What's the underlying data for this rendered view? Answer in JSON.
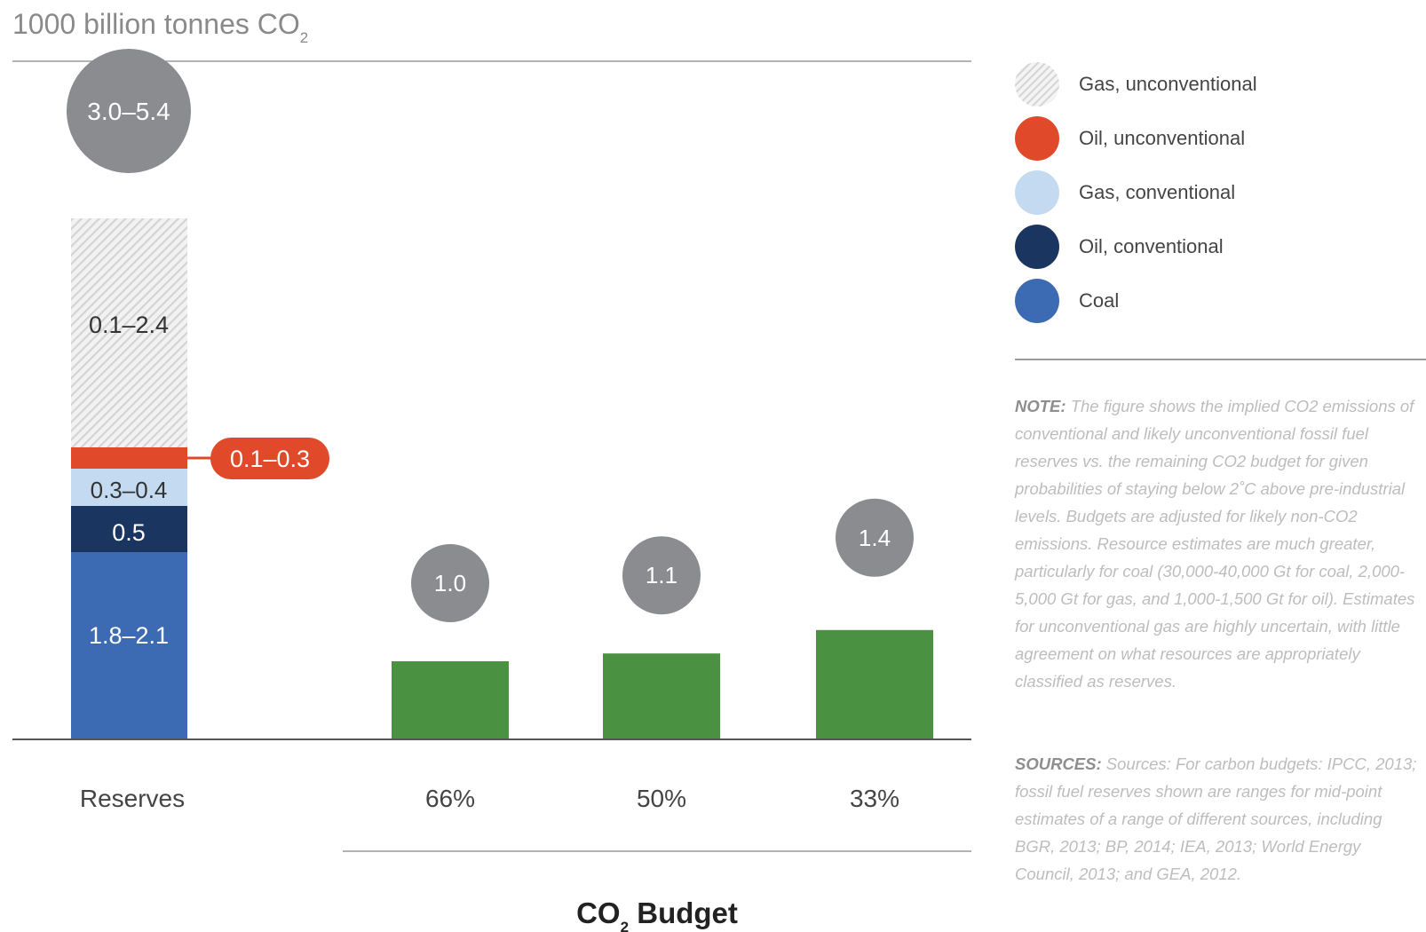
{
  "chart_data": {
    "type": "bar",
    "y_title": "1000 billion tonnes CO",
    "y_title_sub": "2",
    "reserves": {
      "label": "Reserves",
      "total_label": "3.0–5.4",
      "segments": [
        {
          "name": "Coal",
          "range": "1.8–2.1",
          "color": "#3d6bb3"
        },
        {
          "name": "Oil, conventional",
          "range": "0.5",
          "color": "#1b3561"
        },
        {
          "name": "Gas, conventional",
          "range": "0.3–0.4",
          "color": "#c3daf1"
        },
        {
          "name": "Oil, unconventional",
          "range": "0.1–0.3",
          "color": "#e04a2a"
        },
        {
          "name": "Gas, unconventional",
          "range": "0.1–2.4",
          "color": "#e8e8e8"
        }
      ]
    },
    "budget": {
      "title": "CO",
      "title_sub": "2",
      "title_tail": " Budget",
      "categories": [
        "66%",
        "50%",
        "33%"
      ],
      "values": [
        1.0,
        1.1,
        1.4
      ],
      "value_labels": [
        "1.0",
        "1.1",
        "1.4"
      ],
      "color": "#4a9241"
    },
    "bubble_color": "#8a8c90",
    "legend": [
      {
        "label": "Gas, unconventional",
        "color": "#e8e8e8",
        "pattern": "hatch"
      },
      {
        "label": "Oil, unconventional",
        "color": "#e04a2a"
      },
      {
        "label": "Gas, conventional",
        "color": "#c3daf1"
      },
      {
        "label": "Oil, conventional",
        "color": "#1b3561"
      },
      {
        "label": "Coal",
        "color": "#3d6bb3"
      }
    ]
  },
  "note": {
    "label": "NOTE:",
    "text": "The figure shows the implied CO2 emissions of conventional and likely unconventional fossil fuel reserves vs. the remaining CO2 budget for given probabilities of staying below 2˚C above pre-industrial levels. Budgets are adjusted for likely non-CO2 emissions. Resource estimates are much greater, particularly for coal (30,000-40,000 Gt for coal, 2,000-5,000 Gt for gas, and 1,000-1,500 Gt for oil). Estimates for unconventional gas are highly uncertain, with little agreement on what resources are appropriately classified as reserves."
  },
  "sources": {
    "label": "SOURCES:",
    "text": "Sources: For carbon budgets: IPCC, 2013; fossil fuel reserves shown are ranges for mid-point estimates of a range of different sources, including BGR, 2013; BP, 2014; IEA, 2013; World Energy Council, 2013; and GEA, 2012."
  }
}
